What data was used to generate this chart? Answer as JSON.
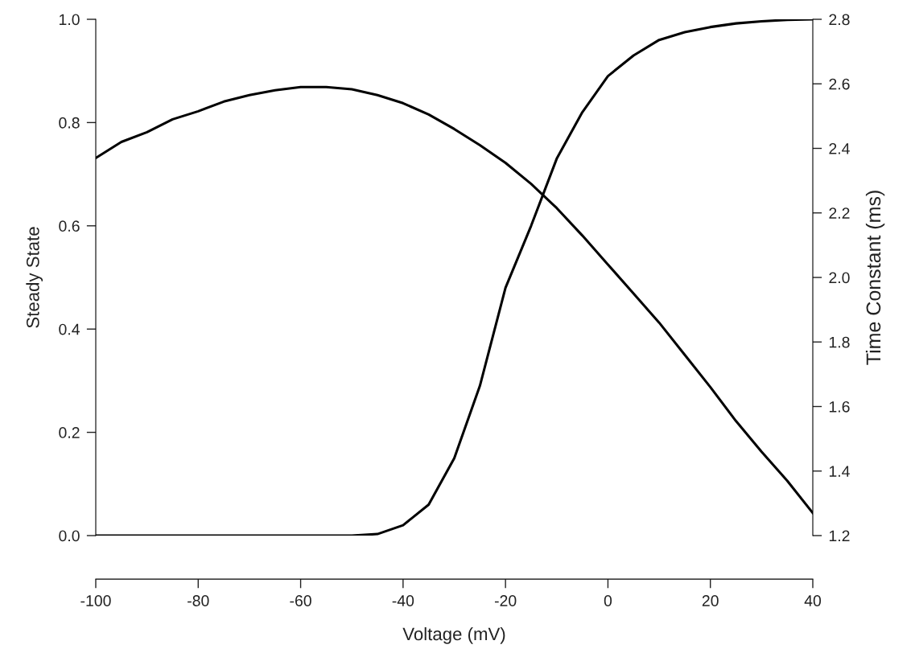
{
  "chart_data": {
    "type": "line",
    "xlabel": "Voltage (mV)",
    "ylabel": "Steady State",
    "y2label": "Time Constant (ms)",
    "x": [
      -100,
      -95,
      -90,
      -85,
      -80,
      -75,
      -70,
      -65,
      -60,
      -55,
      -50,
      -45,
      -40,
      -35,
      -30,
      -25,
      -20,
      -15,
      -10,
      -5,
      0,
      5,
      10,
      15,
      20,
      25,
      30,
      35,
      40
    ],
    "series": [
      {
        "color": "#000000",
        "values": [
          0,
          0,
          0,
          0,
          0,
          0,
          0,
          0,
          0,
          0,
          0,
          0.003,
          0.02,
          0.06,
          0.15,
          0.29,
          0.48,
          0.6,
          0.73,
          0.82,
          0.89,
          0.93,
          0.96,
          0.975,
          0.985,
          0.992,
          0.996,
          0.999,
          1.0
        ]
      },
      {
        "color": "#000000",
        "axis": "y2",
        "values": [
          2.37,
          2.42,
          2.45,
          2.49,
          2.515,
          2.545,
          2.565,
          2.58,
          2.59,
          2.59,
          2.583,
          2.565,
          2.54,
          2.505,
          2.46,
          2.41,
          2.355,
          2.29,
          2.215,
          2.13,
          2.04,
          1.95,
          1.86,
          1.76,
          1.66,
          1.555,
          1.46,
          1.37,
          1.27
        ]
      }
    ],
    "xlim": [
      -100,
      40
    ],
    "xticks": [
      -100,
      -80,
      -60,
      -40,
      -20,
      0,
      20,
      40
    ],
    "ylim": [
      0,
      1
    ],
    "yticks": [
      {
        "value": 0,
        "label": "0.0"
      },
      {
        "value": 0.2,
        "label": "0.2"
      },
      {
        "value": 0.4,
        "label": "0.4"
      },
      {
        "value": 0.6,
        "label": "0.6"
      },
      {
        "value": 0.8,
        "label": "0.8"
      },
      {
        "value": 1,
        "label": "1.0"
      }
    ],
    "y2lim": [
      1.2,
      2.8
    ],
    "y2ticks": [
      1.2,
      1.4,
      1.6,
      1.8,
      {
        "value": 2,
        "label": "2.0"
      },
      2.2,
      2.4,
      2.6,
      2.8
    ],
    "grid": false,
    "marker": "none",
    "line_style": "solid"
  }
}
